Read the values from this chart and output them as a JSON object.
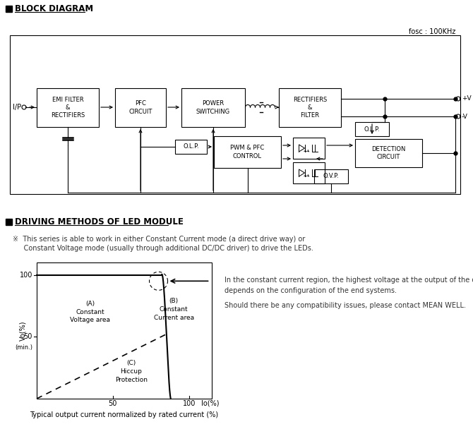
{
  "title_block": "BLOCK DIAGRAM",
  "title_driving": "DRIVING METHODS OF LED MODULE",
  "fosc_label": "fosc : 100KHz",
  "note_text1": "※  This series is able to work in either Constant Current mode (a direct drive way) or",
  "note_text2": "     Constant Voltage mode (usually through additional DC/DC driver) to drive the LEDs.",
  "right_note1": "In the constant current region, the highest voltage at the output of the driver",
  "right_note2": "depends on the configuration of the end systems.",
  "right_note3": "Should there be any compatibility issues, please contact MEAN WELL.",
  "x_label_bottom": "Typical output current normalized by rated current (%)",
  "bg_color": "#ffffff"
}
